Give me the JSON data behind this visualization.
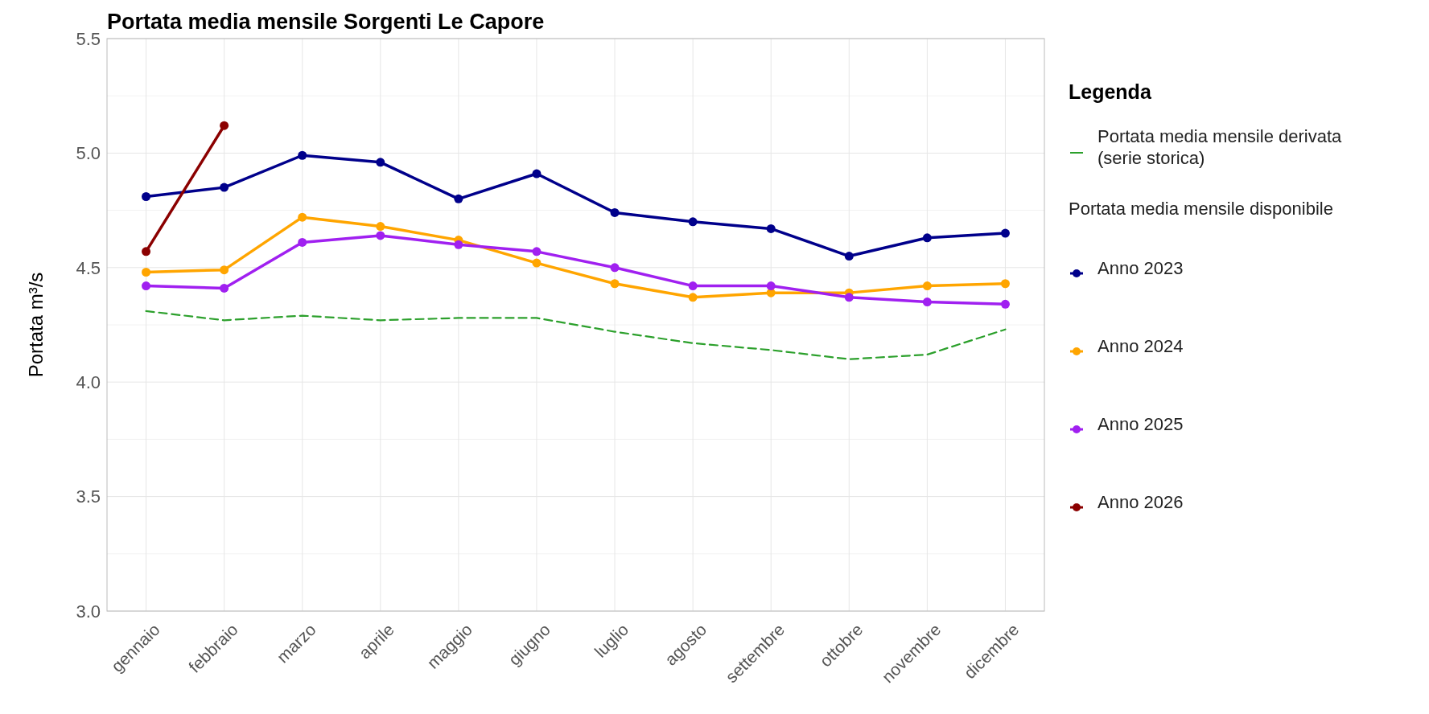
{
  "chart_data": {
    "type": "line",
    "title": "Portata media mensile Sorgenti Le Capore",
    "ylabel": "Portata m³/s",
    "legend_title": "Legenda",
    "annotations": [
      "Portata media mensile disponibile"
    ],
    "categories": [
      "gennaio",
      "febbraio",
      "marzo",
      "aprile",
      "maggio",
      "giugno",
      "luglio",
      "agosto",
      "settembre",
      "ottobre",
      "novembre",
      "dicembre"
    ],
    "series": [
      {
        "name": "Portata media mensile derivata (serie storica)",
        "color": "#2ca02c",
        "line_style": "dashed",
        "marker": "none",
        "values": [
          4.31,
          4.27,
          4.29,
          4.27,
          4.28,
          4.28,
          4.22,
          4.17,
          4.14,
          4.1,
          4.12,
          4.23
        ]
      },
      {
        "name": "Anno 2023",
        "color": "#00008b",
        "values": [
          4.81,
          4.85,
          4.99,
          4.96,
          4.8,
          4.91,
          4.74,
          4.7,
          4.67,
          4.55,
          4.63,
          4.65
        ]
      },
      {
        "name": "Anno 2024",
        "color": "#ffa500",
        "values": [
          4.48,
          4.49,
          4.72,
          4.68,
          4.62,
          4.52,
          4.43,
          4.37,
          4.39,
          4.39,
          4.42,
          4.43
        ]
      },
      {
        "name": "Anno 2025",
        "color": "#a020f0",
        "values": [
          4.42,
          4.41,
          4.61,
          4.64,
          4.6,
          4.57,
          4.5,
          4.42,
          4.42,
          4.37,
          4.35,
          4.34
        ]
      },
      {
        "name": "Anno 2026",
        "color": "#8b0000",
        "values": [
          4.57,
          5.12,
          null,
          null,
          null,
          null,
          null,
          null,
          null,
          null,
          null,
          null
        ]
      }
    ],
    "ylim": [
      3.0,
      5.5
    ],
    "yticks": [
      {
        "value": 3.0,
        "label": "3.0"
      },
      {
        "value": 3.5,
        "label": "3.5"
      },
      {
        "value": 4.0,
        "label": "4.0"
      },
      {
        "value": 4.5,
        "label": "4.5"
      },
      {
        "value": 5.0,
        "label": "5.0"
      },
      {
        "value": 5.5,
        "label": "5.5"
      }
    ],
    "grid": true,
    "legend": "right",
    "marker": "circle",
    "line_style": "solid"
  }
}
